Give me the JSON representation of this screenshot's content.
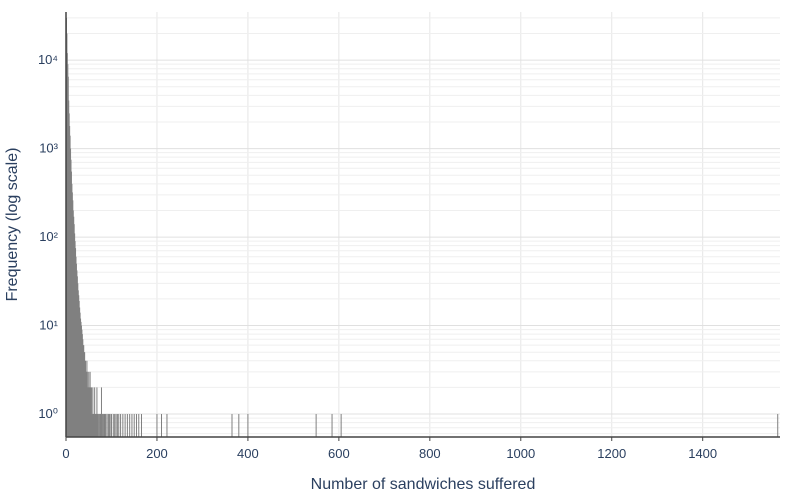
{
  "chart_data": {
    "type": "bar",
    "title": "",
    "xlabel": "Number of sandwiches suffered",
    "ylabel": "Frequency (log scale)",
    "y_scale": "log",
    "xlim": [
      0,
      1570
    ],
    "ylim": [
      0.55,
      35000
    ],
    "x_ticks": [
      0,
      200,
      400,
      600,
      800,
      1000,
      1200,
      1400
    ],
    "x_tick_labels": [
      "0",
      "200",
      "400",
      "600",
      "800",
      "1000",
      "1200",
      "1400"
    ],
    "y_ticks": [
      1,
      10,
      100,
      1000,
      10000
    ],
    "y_tick_labels": [
      "10⁰",
      "10¹",
      "10²",
      "10³",
      "10⁴"
    ],
    "grid": true,
    "legend": "none",
    "bar_color": "#808080",
    "series": [
      {
        "x": [
          1,
          2,
          3,
          4,
          5,
          6,
          7,
          8,
          9,
          10,
          11,
          12,
          13,
          14,
          15,
          16,
          17,
          18,
          19,
          20,
          21,
          22,
          23,
          24,
          25,
          26,
          27,
          28,
          29,
          30,
          31,
          32,
          33,
          34,
          35,
          36,
          37,
          38,
          39,
          40,
          41,
          42,
          43,
          44,
          45,
          46,
          47,
          48,
          49,
          50,
          51,
          52,
          53,
          54,
          55,
          56,
          57,
          58,
          59,
          60,
          61,
          62,
          63,
          64,
          65,
          66,
          67,
          68,
          69,
          70,
          72,
          74,
          75,
          77,
          78,
          80,
          82,
          84,
          85,
          87,
          90,
          93,
          95,
          97,
          100,
          104,
          107,
          110,
          113,
          116,
          120,
          125,
          130,
          135,
          140,
          145,
          150,
          155,
          160,
          166,
          200,
          210,
          222,
          365,
          380,
          400,
          550,
          585,
          605,
          1565
        ],
        "y": [
          30000,
          20000,
          12000,
          9000,
          6500,
          3500,
          2500,
          1800,
          1400,
          1000,
          750,
          550,
          400,
          320,
          260,
          200,
          170,
          140,
          110,
          90,
          75,
          60,
          50,
          42,
          36,
          30,
          25,
          22,
          19,
          16,
          14,
          12,
          11,
          10,
          9,
          8,
          7,
          6,
          6,
          5,
          5,
          4,
          4,
          3,
          3,
          4,
          3,
          2,
          2,
          3,
          2,
          2,
          3,
          2,
          1,
          2,
          1,
          1,
          2,
          1,
          1,
          1,
          2,
          1,
          1,
          1,
          1,
          2,
          1,
          1,
          1,
          1,
          1,
          1,
          2,
          1,
          1,
          1,
          1,
          1,
          1,
          1,
          1,
          1,
          1,
          1,
          1,
          1,
          1,
          1,
          1,
          1,
          1,
          1,
          1,
          1,
          1,
          1,
          1,
          1,
          1,
          1,
          1,
          1,
          1,
          1,
          1,
          1,
          1,
          1
        ]
      }
    ]
  }
}
